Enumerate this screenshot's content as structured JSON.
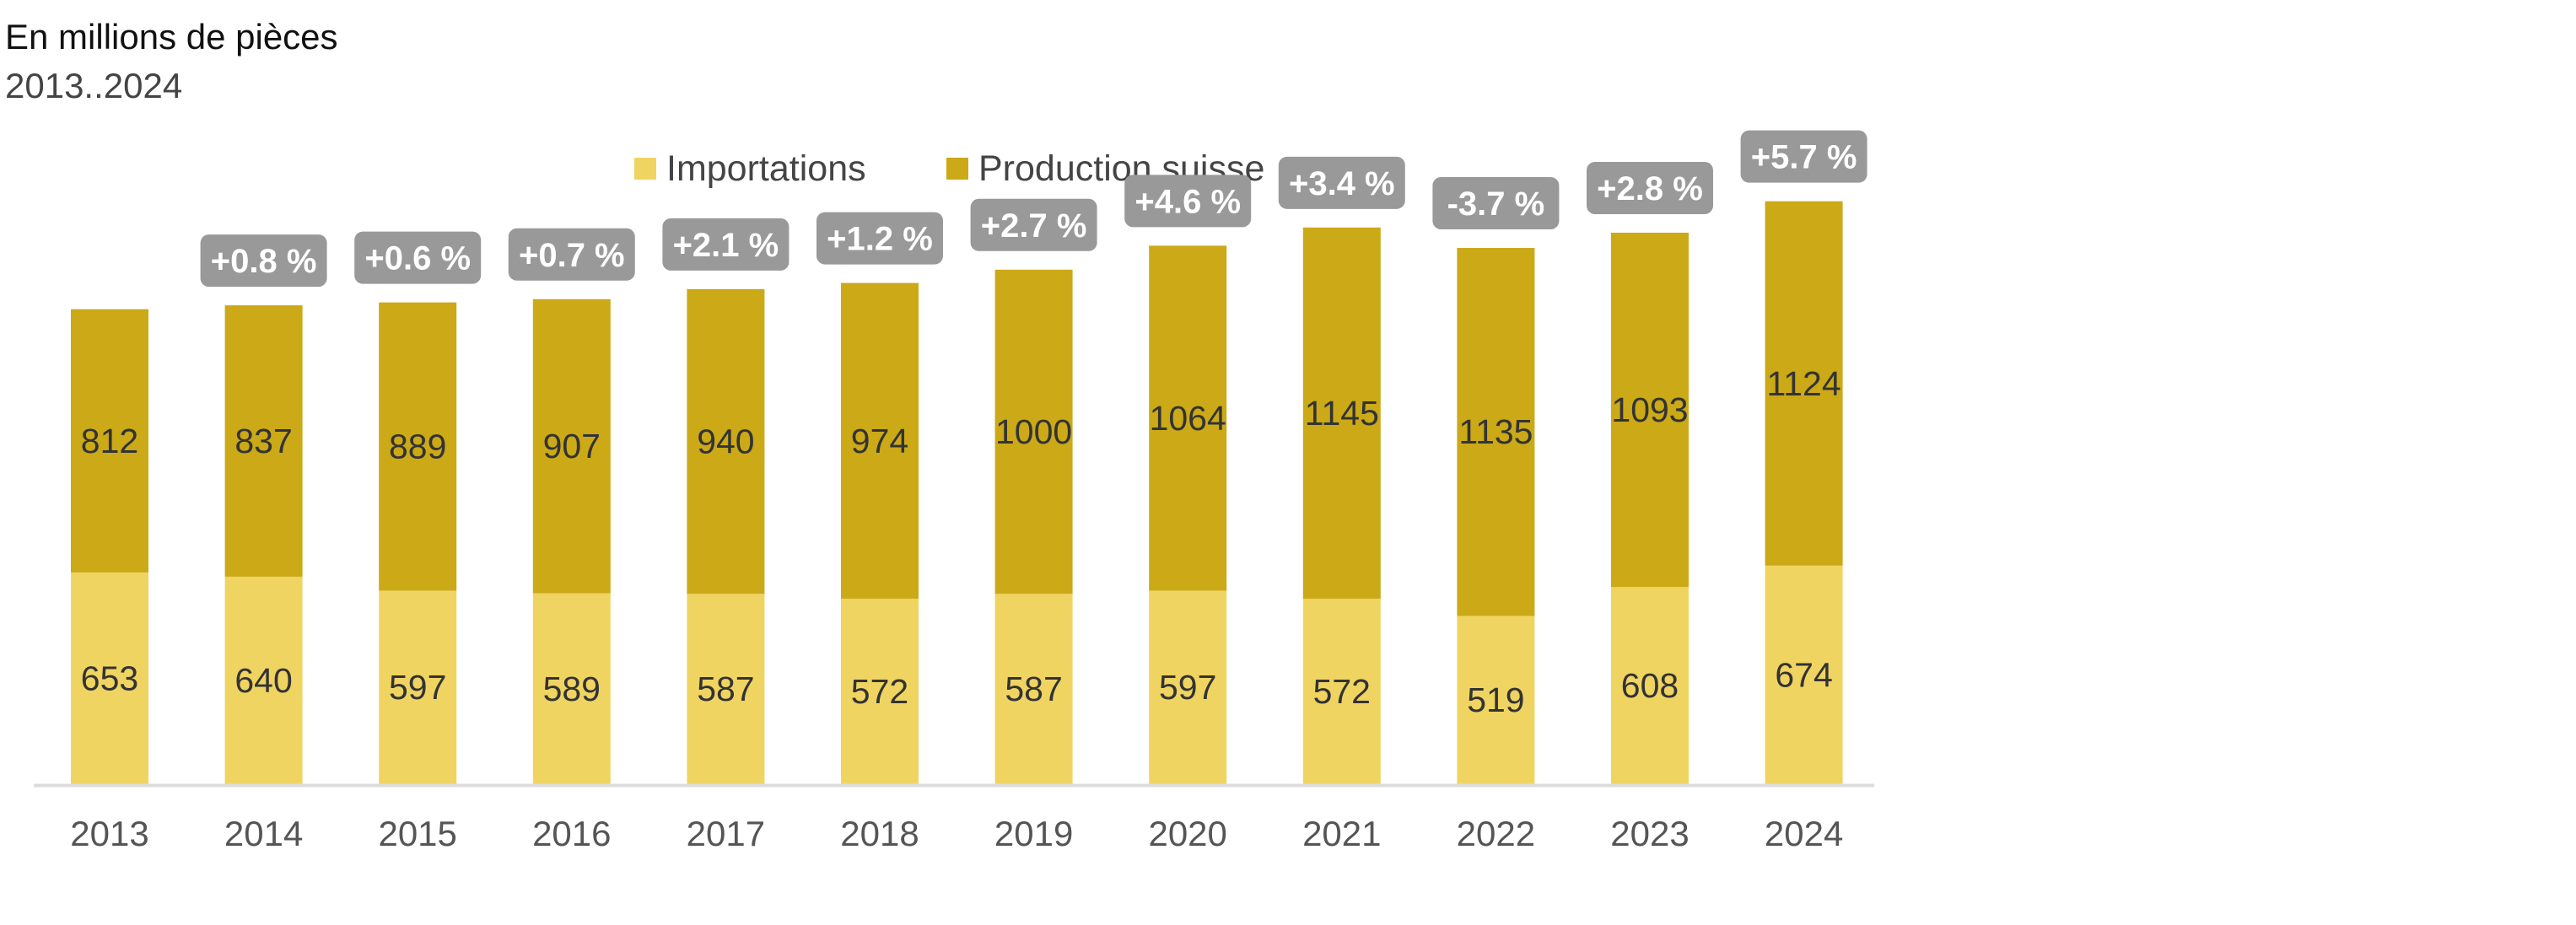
{
  "header": {
    "title": "En millions de pièces",
    "subtitle": "2013..2024"
  },
  "colors": {
    "importations": "#f0d462",
    "production": "#cba917",
    "badge": "#999999",
    "axis": "#dddddd"
  },
  "chart_data": {
    "type": "bar",
    "stacked": true,
    "title": "En millions de pièces",
    "subtitle": "2013..2024",
    "xlabel": "",
    "ylabel": "",
    "legend_position": "top-center",
    "grid": false,
    "ylim": [
      0,
      1850
    ],
    "categories": [
      "2013",
      "2014",
      "2015",
      "2016",
      "2017",
      "2018",
      "2019",
      "2020",
      "2021",
      "2022",
      "2023",
      "2024"
    ],
    "series": [
      {
        "name": "Importations",
        "values": [
          653,
          640,
          597,
          589,
          587,
          572,
          587,
          597,
          572,
          519,
          608,
          674
        ]
      },
      {
        "name": "Production suisse",
        "values": [
          812,
          837,
          889,
          907,
          940,
          974,
          1000,
          1064,
          1145,
          1135,
          1093,
          1124
        ]
      }
    ],
    "annotations": [
      "",
      "+0.8 %",
      "+0.6 %",
      "+0.7 %",
      "+2.1 %",
      "+1.2 %",
      "+2.7 %",
      "+4.6 %",
      "+3.4 %",
      "-3.7 %",
      "+2.8 %",
      "+5.7 %"
    ]
  }
}
